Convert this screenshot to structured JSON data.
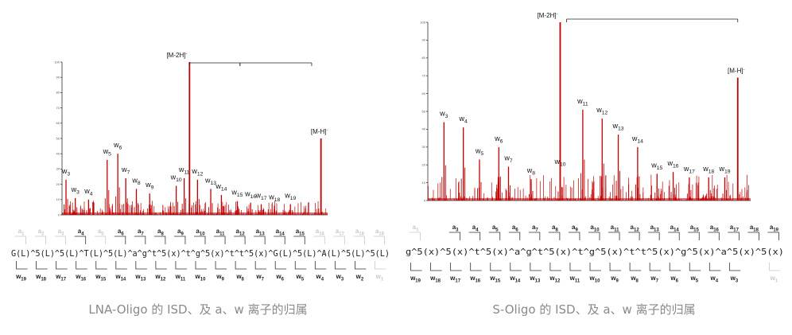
{
  "colors": {
    "peak": "#c00000",
    "frag": "#333333",
    "faint": "#c8c8c8"
  },
  "panels": [
    {
      "id": "left",
      "caption": "LNA-Oligo 的 ISD、及 a、w 离子的归属",
      "sequence": "G(L)^5(L)^5(L)^T(L)^5(L)^a^g^t^5(x)^t^g^5(x)^t^t^5(x)^G(L)^5(L)^A(L)^5(L)^5(L)",
      "a_labels": [
        {
          "text": "a1",
          "faint": true
        },
        {
          "text": "a2",
          "faint": true
        },
        {
          "text": "a3",
          "faint": true
        },
        {
          "text": "a4",
          "faint": false
        },
        {
          "text": "a5",
          "faint": true
        },
        {
          "text": "a6",
          "faint": false
        },
        {
          "text": "a7",
          "faint": false
        },
        {
          "text": "a8",
          "faint": false
        },
        {
          "text": "a9",
          "faint": false
        },
        {
          "text": "a10",
          "faint": false
        },
        {
          "text": "a11",
          "faint": false
        },
        {
          "text": "a12",
          "faint": false
        },
        {
          "text": "a13",
          "faint": false
        },
        {
          "text": "a14",
          "faint": false
        },
        {
          "text": "a15",
          "faint": false
        },
        {
          "text": "a16",
          "faint": true
        },
        {
          "text": "a17",
          "faint": true
        },
        {
          "text": "a18",
          "faint": true
        },
        {
          "text": "a19",
          "faint": true
        }
      ],
      "w_labels": [
        {
          "text": "w19",
          "faint": false
        },
        {
          "text": "w18",
          "faint": false
        },
        {
          "text": "w17",
          "faint": false
        },
        {
          "text": "w16",
          "faint": false
        },
        {
          "text": "w15",
          "faint": false
        },
        {
          "text": "w14",
          "faint": false
        },
        {
          "text": "w13",
          "faint": false
        },
        {
          "text": "w12",
          "faint": false
        },
        {
          "text": "w11",
          "faint": false
        },
        {
          "text": "w10",
          "faint": false
        },
        {
          "text": "w9",
          "faint": false
        },
        {
          "text": "w8",
          "faint": false
        },
        {
          "text": "w7",
          "faint": false
        },
        {
          "text": "w6",
          "faint": false
        },
        {
          "text": "w5",
          "faint": false
        },
        {
          "text": "w4",
          "faint": false
        },
        {
          "text": "w3",
          "faint": false
        },
        {
          "text": "w2",
          "faint": false
        },
        {
          "text": "w1",
          "faint": true
        }
      ]
    },
    {
      "id": "right",
      "caption": "S-Oligo 的 ISD、及 a、w 离子的归属",
      "sequence": "g^5(x)^5(x)^t^5(x)^a^g^t^5(x)^t^g^5(x)^t^t^5(x)^g^5(x)^a^5(x)^5(x)",
      "a_labels": [
        {
          "text": "a1",
          "faint": true
        },
        {
          "text": "a3",
          "faint": false
        },
        {
          "text": "a4",
          "faint": false
        },
        {
          "text": "a5",
          "faint": false
        },
        {
          "text": "a6",
          "faint": false
        },
        {
          "text": "a7",
          "faint": false
        },
        {
          "text": "a8",
          "faint": false
        },
        {
          "text": "a9",
          "faint": false
        },
        {
          "text": "a10",
          "faint": false
        },
        {
          "text": "a11",
          "faint": false
        },
        {
          "text": "a12",
          "faint": false
        },
        {
          "text": "a13",
          "faint": false
        },
        {
          "text": "a14",
          "faint": false
        },
        {
          "text": "a15",
          "faint": false
        },
        {
          "text": "a16",
          "faint": false
        },
        {
          "text": "a17",
          "faint": false
        },
        {
          "text": "a18",
          "faint": false
        },
        {
          "text": "a19",
          "faint": false
        }
      ],
      "w_labels": [
        {
          "text": "w19",
          "faint": false
        },
        {
          "text": "w18",
          "faint": false
        },
        {
          "text": "w17",
          "faint": false
        },
        {
          "text": "w16",
          "faint": false
        },
        {
          "text": "w15",
          "faint": false
        },
        {
          "text": "w14",
          "faint": false
        },
        {
          "text": "w13",
          "faint": false
        },
        {
          "text": "w12",
          "faint": false
        },
        {
          "text": "w11",
          "faint": false
        },
        {
          "text": "w10",
          "faint": false
        },
        {
          "text": "w9",
          "faint": false
        },
        {
          "text": "w8",
          "faint": false
        },
        {
          "text": "w7",
          "faint": false
        },
        {
          "text": "w6",
          "faint": false
        },
        {
          "text": "w5",
          "faint": false
        },
        {
          "text": "w4",
          "faint": false
        },
        {
          "text": "w3",
          "faint": false
        },
        {
          "text": "w1",
          "faint": true
        }
      ]
    }
  ],
  "chart_data": [
    {
      "type": "bar",
      "panel": "left",
      "xlim": [
        0,
        100
      ],
      "ylim": [
        0,
        100
      ],
      "yticks": [
        "0",
        "10",
        "20",
        "30",
        "40",
        "50",
        "60",
        "70",
        "80",
        "90",
        "100"
      ],
      "major_peaks": [
        {
          "label": "[M-2H]-",
          "x": 48,
          "y": 100
        },
        {
          "label": "[M-H]-",
          "x": 97.5,
          "y": 50
        }
      ],
      "ion_peaks": [
        {
          "label": "w3",
          "x": 1.5,
          "y": 23
        },
        {
          "label": "w3",
          "x": 5,
          "y": 11
        },
        {
          "label": "w4",
          "x": 10,
          "y": 10
        },
        {
          "label": "w5",
          "x": 17,
          "y": 36
        },
        {
          "label": "w6",
          "x": 21,
          "y": 40
        },
        {
          "label": "w7",
          "x": 24,
          "y": 24
        },
        {
          "label": "w8",
          "x": 28,
          "y": 17
        },
        {
          "label": "w9",
          "x": 33,
          "y": 14
        },
        {
          "label": "w10",
          "x": 43,
          "y": 19
        },
        {
          "label": "w11",
          "x": 46,
          "y": 24
        },
        {
          "label": "w12",
          "x": 51,
          "y": 23
        },
        {
          "label": "w13",
          "x": 56,
          "y": 17
        },
        {
          "label": "w14",
          "x": 60,
          "y": 13
        },
        {
          "label": "w15",
          "x": 66,
          "y": 9
        },
        {
          "label": "w16",
          "x": 71,
          "y": 8
        },
        {
          "label": "w17",
          "x": 75,
          "y": 7
        },
        {
          "label": "w18",
          "x": 80,
          "y": 6
        },
        {
          "label": "w19",
          "x": 86,
          "y": 7
        }
      ],
      "brackets": [
        {
          "from": 48,
          "to": 67
        },
        {
          "from": 67,
          "to": 94
        }
      ]
    },
    {
      "type": "bar",
      "panel": "right",
      "xlim": [
        0,
        100
      ],
      "ylim": [
        0,
        100
      ],
      "yticks": [
        "0",
        "10",
        "20",
        "30",
        "40",
        "50",
        "60",
        "70",
        "80",
        "90",
        "100"
      ],
      "major_peaks": [
        {
          "label": "[M-2H]-",
          "x": 41,
          "y": 100
        },
        {
          "label": "[M-H]-",
          "x": 96,
          "y": 69
        }
      ],
      "ion_peaks": [
        {
          "label": "w3",
          "x": 5,
          "y": 44
        },
        {
          "label": "w4",
          "x": 11,
          "y": 41
        },
        {
          "label": "w5",
          "x": 16,
          "y": 23
        },
        {
          "label": "w6",
          "x": 22,
          "y": 30
        },
        {
          "label": "w7",
          "x": 25,
          "y": 19
        },
        {
          "label": "w8",
          "x": 32,
          "y": 12
        },
        {
          "label": "w10",
          "x": 41,
          "y": 17
        },
        {
          "label": "w11",
          "x": 48,
          "y": 51
        },
        {
          "label": "w12",
          "x": 54,
          "y": 46
        },
        {
          "label": "w13",
          "x": 59,
          "y": 37
        },
        {
          "label": "w14",
          "x": 65,
          "y": 30
        },
        {
          "label": "w15",
          "x": 71,
          "y": 15
        },
        {
          "label": "w16",
          "x": 76,
          "y": 16
        },
        {
          "label": "w17",
          "x": 81,
          "y": 13
        },
        {
          "label": "w18",
          "x": 87,
          "y": 13
        },
        {
          "label": "w19",
          "x": 92,
          "y": 13
        }
      ],
      "brackets": [
        {
          "from": 43,
          "to": 96
        }
      ]
    }
  ]
}
